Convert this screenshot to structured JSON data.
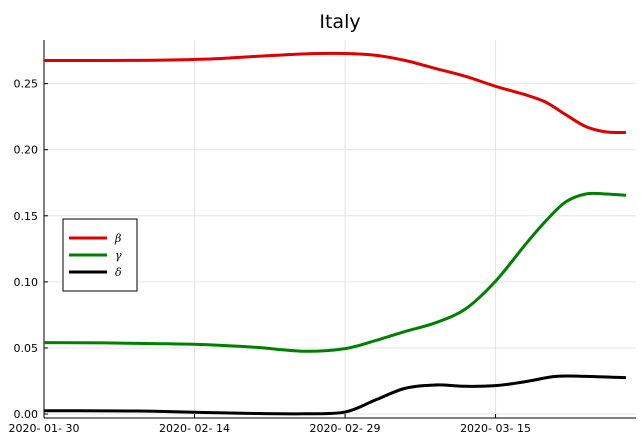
{
  "chart_data": {
    "type": "line",
    "title": "Italy",
    "xlabel": "",
    "ylabel": "",
    "x_range": [
      "2020-01-30",
      "2020-03-29"
    ],
    "ylim": [
      -0.003,
      0.283
    ],
    "x_ticks": [
      {
        "date": "2020-01-30",
        "label": "2020- 01- 30"
      },
      {
        "date": "2020-02-14",
        "label": "2020- 02- 14"
      },
      {
        "date": "2020-02-29",
        "label": "2020- 02- 29"
      },
      {
        "date": "2020-03-15",
        "label": "2020- 03- 15"
      }
    ],
    "y_ticks": [
      {
        "value": 0.0,
        "label": "0.00"
      },
      {
        "value": 0.05,
        "label": "0.05"
      },
      {
        "value": 0.1,
        "label": "0.10"
      },
      {
        "value": 0.15,
        "label": "0.15"
      },
      {
        "value": 0.2,
        "label": "0.20"
      },
      {
        "value": 0.25,
        "label": "0.25"
      }
    ],
    "grid": true,
    "legend_position": "left-middle",
    "series": [
      {
        "name": "β",
        "color": "#e00000",
        "points": [
          [
            "2020-01-30",
            0.2675
          ],
          [
            "2020-02-05",
            0.2675
          ],
          [
            "2020-02-10",
            0.2677
          ],
          [
            "2020-02-15",
            0.2685
          ],
          [
            "2020-02-20",
            0.2705
          ],
          [
            "2020-02-25",
            0.2725
          ],
          [
            "2020-02-29",
            0.2728
          ],
          [
            "2020-03-03",
            0.2715
          ],
          [
            "2020-03-06",
            0.2675
          ],
          [
            "2020-03-09",
            0.2615
          ],
          [
            "2020-03-12",
            0.2555
          ],
          [
            "2020-03-15",
            0.248
          ],
          [
            "2020-03-18",
            0.2415
          ],
          [
            "2020-03-20",
            0.236
          ],
          [
            "2020-03-22",
            0.2265
          ],
          [
            "2020-03-24",
            0.2175
          ],
          [
            "2020-03-26",
            0.2135
          ],
          [
            "2020-03-28",
            0.213
          ]
        ]
      },
      {
        "name": "γ",
        "color": "#008000",
        "points": [
          [
            "2020-01-30",
            0.054
          ],
          [
            "2020-02-05",
            0.0538
          ],
          [
            "2020-02-10",
            0.0533
          ],
          [
            "2020-02-15",
            0.0525
          ],
          [
            "2020-02-20",
            0.0505
          ],
          [
            "2020-02-25",
            0.0475
          ],
          [
            "2020-02-29",
            0.0495
          ],
          [
            "2020-03-03",
            0.0555
          ],
          [
            "2020-03-06",
            0.0625
          ],
          [
            "2020-03-09",
            0.069
          ],
          [
            "2020-03-12",
            0.0795
          ],
          [
            "2020-03-15",
            0.1005
          ],
          [
            "2020-03-18",
            0.1285
          ],
          [
            "2020-03-20",
            0.146
          ],
          [
            "2020-03-22",
            0.1605
          ],
          [
            "2020-03-24",
            0.1665
          ],
          [
            "2020-03-26",
            0.1665
          ],
          [
            "2020-03-28",
            0.1655
          ]
        ]
      },
      {
        "name": "δ",
        "color": "#000000",
        "points": [
          [
            "2020-01-30",
            0.0025
          ],
          [
            "2020-02-05",
            0.0024
          ],
          [
            "2020-02-10",
            0.0021
          ],
          [
            "2020-02-15",
            0.0012
          ],
          [
            "2020-02-20",
            0.0004
          ],
          [
            "2020-02-25",
            0.0002
          ],
          [
            "2020-02-29",
            0.0015
          ],
          [
            "2020-03-03",
            0.0105
          ],
          [
            "2020-03-06",
            0.0195
          ],
          [
            "2020-03-09",
            0.022
          ],
          [
            "2020-03-12",
            0.021
          ],
          [
            "2020-03-15",
            0.0215
          ],
          [
            "2020-03-18",
            0.0245
          ],
          [
            "2020-03-21",
            0.0285
          ],
          [
            "2020-03-24",
            0.0285
          ],
          [
            "2020-03-28",
            0.0275
          ]
        ]
      }
    ]
  }
}
